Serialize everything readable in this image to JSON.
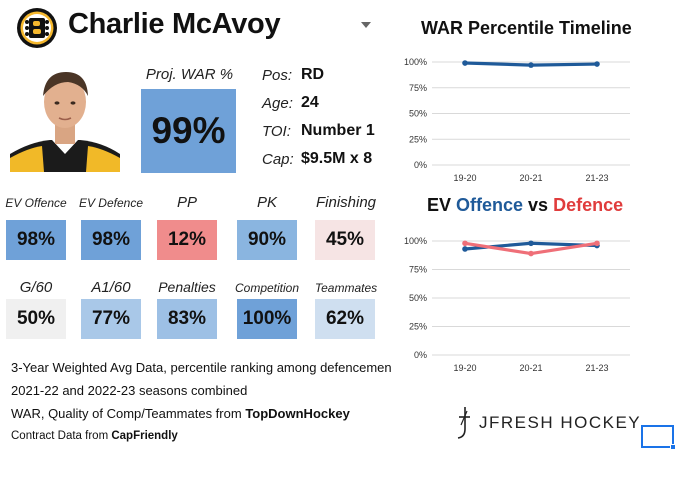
{
  "header": {
    "player_name": "Charlie McAvoy",
    "logo_icon": "bruins-logo-icon",
    "dropdown_icon": "caret-down-icon"
  },
  "headshot": {
    "icon": "player-headshot"
  },
  "proj_war": {
    "label": "Proj. WAR %",
    "value": "99%",
    "color": "#6fa1d8"
  },
  "info": [
    {
      "label": "Pos:",
      "value": "RD"
    },
    {
      "label": "Age:",
      "value": "24"
    },
    {
      "label": "TOI:",
      "value": "Number 1"
    },
    {
      "label": "Cap:",
      "value": "$9.5M x 8"
    }
  ],
  "stats_row1": [
    {
      "label": "EV Offence",
      "value": "98%",
      "color": "#6fa1d8"
    },
    {
      "label": "EV Defence",
      "value": "98%",
      "color": "#6fa1d8"
    },
    {
      "label": "PP",
      "value": "12%",
      "color": "#f08c8c"
    },
    {
      "label": "PK",
      "value": "90%",
      "color": "#8ab5e0"
    },
    {
      "label": "Finishing",
      "value": "45%",
      "color": "#f6e4e4"
    }
  ],
  "stats_row2": [
    {
      "label": "G/60",
      "value": "50%",
      "color": "#f0f0f0"
    },
    {
      "label": "A1/60",
      "value": "77%",
      "color": "#a9c8e8"
    },
    {
      "label": "Penalties",
      "value": "83%",
      "color": "#9dc0e5"
    },
    {
      "label": "Competition",
      "value": "100%",
      "color": "#6fa1d8"
    },
    {
      "label": "Teammates",
      "value": "62%",
      "color": "#cfdff0"
    }
  ],
  "footnotes": {
    "line1": "3-Year Weighted Avg Data, percentile ranking among defencemen",
    "line2": "2021-22 and 2022-23 seasons combined",
    "line3_prefix": "WAR, Quality of Comp/Teammates from ",
    "line3_source": "TopDownHockey",
    "line4_prefix": "Contract Data from ",
    "line4_source": "CapFriendly"
  },
  "brand": {
    "name": "JFRESH HOCKEY",
    "icon": "jfresh-logo-icon"
  },
  "chart_data": [
    {
      "type": "line",
      "title": "WAR Percentile Timeline",
      "categories": [
        "19-20",
        "20-21",
        "21-23"
      ],
      "series": [
        {
          "values": [
            99,
            97,
            98
          ],
          "color": "#1f5a99"
        }
      ],
      "ylim": [
        0,
        100
      ],
      "yticks": [
        "0%",
        "25%",
        "50%",
        "75%",
        "100%"
      ],
      "grid": true
    },
    {
      "type": "line",
      "title_parts": [
        {
          "text": "EV ",
          "color": "#111111"
        },
        {
          "text": "Offence",
          "color": "#1f5a99"
        },
        {
          "text": " vs ",
          "color": "#111111"
        },
        {
          "text": "Defence",
          "color": "#e03c3c"
        }
      ],
      "categories": [
        "19-20",
        "20-21",
        "21-23"
      ],
      "series": [
        {
          "values": [
            93,
            98,
            96
          ],
          "color": "#1f5a99"
        },
        {
          "values": [
            98,
            89,
            98
          ],
          "color": "#ef6f78"
        }
      ],
      "ylim": [
        0,
        100
      ],
      "yticks": [
        "0%",
        "25%",
        "50%",
        "75%",
        "100%"
      ],
      "grid": true
    }
  ]
}
